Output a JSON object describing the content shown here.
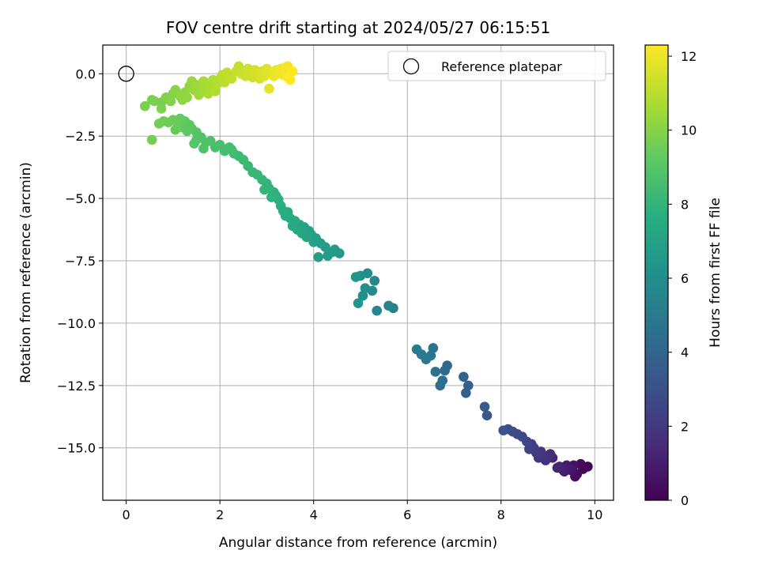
{
  "chart_data": {
    "type": "scatter",
    "title": "FOV centre drift starting at 2024/05/27 06:15:51",
    "xlabel": "Angular distance from reference (arcmin)",
    "ylabel": "Rotation from reference (arcmin)",
    "xlim": [
      -0.5,
      10.4
    ],
    "ylim": [
      -17.1,
      1.15
    ],
    "xticks": [
      0,
      2,
      4,
      6,
      8,
      10
    ],
    "xtick_labels": [
      "0",
      "2",
      "4",
      "6",
      "8",
      "10"
    ],
    "yticks": [
      0,
      -2.5,
      -5,
      -7.5,
      -10,
      -12.5,
      -15
    ],
    "ytick_labels": [
      "0.0",
      "−2.5",
      "−5.0",
      "−7.5",
      "−10.0",
      "−12.5",
      "−15.0"
    ],
    "grid": true,
    "legend": {
      "position": "top-right",
      "entries": [
        {
          "label": "Reference platepar",
          "marker": "open-circle"
        }
      ]
    },
    "reference_point": {
      "x": 0,
      "y": 0
    },
    "colorbar": {
      "label": "Hours from first FF file",
      "colormap": "viridis",
      "range": [
        0,
        12.3
      ],
      "ticks": [
        0,
        2,
        4,
        6,
        8,
        10,
        12
      ],
      "tick_labels": [
        "0",
        "2",
        "4",
        "6",
        "8",
        "10",
        "12"
      ]
    },
    "colormap_stops": [
      "#440154",
      "#472d7b",
      "#3b528b",
      "#2c728e",
      "#21918c",
      "#28ae80",
      "#5ec962",
      "#addc30",
      "#fde725"
    ],
    "points": [
      [
        9.85,
        -15.75,
        0.1
      ],
      [
        9.75,
        -15.85,
        0.2
      ],
      [
        9.7,
        -15.65,
        0.3
      ],
      [
        9.62,
        -16.05,
        0.4
      ],
      [
        9.58,
        -16.15,
        0.5
      ],
      [
        9.55,
        -15.7,
        0.6
      ],
      [
        9.5,
        -15.9,
        0.7
      ],
      [
        9.45,
        -15.8,
        0.8
      ],
      [
        9.4,
        -15.7,
        0.9
      ],
      [
        9.35,
        -15.95,
        1.0
      ],
      [
        9.3,
        -15.85,
        1.1
      ],
      [
        9.25,
        -15.75,
        1.2
      ],
      [
        9.2,
        -15.8,
        1.3
      ],
      [
        9.1,
        -15.4,
        1.4
      ],
      [
        9.05,
        -15.25,
        1.5
      ],
      [
        9.0,
        -15.35,
        1.6
      ],
      [
        8.95,
        -15.5,
        1.7
      ],
      [
        8.9,
        -15.3,
        1.8
      ],
      [
        8.85,
        -15.15,
        1.9
      ],
      [
        8.8,
        -15.4,
        2.0
      ],
      [
        8.75,
        -15.2,
        2.1
      ],
      [
        8.7,
        -15.0,
        2.2
      ],
      [
        8.65,
        -14.85,
        2.3
      ],
      [
        8.6,
        -15.05,
        2.4
      ],
      [
        8.55,
        -14.75,
        2.5
      ],
      [
        8.45,
        -14.55,
        2.6
      ],
      [
        8.35,
        -14.45,
        2.7
      ],
      [
        8.25,
        -14.35,
        2.8
      ],
      [
        8.15,
        -14.25,
        2.9
      ],
      [
        8.05,
        -14.3,
        3.0
      ],
      [
        7.7,
        -13.7,
        3.3
      ],
      [
        7.65,
        -13.35,
        3.4
      ],
      [
        7.3,
        -12.5,
        3.7
      ],
      [
        7.25,
        -12.8,
        3.8
      ],
      [
        7.2,
        -12.15,
        3.9
      ],
      [
        6.85,
        -11.7,
        4.2
      ],
      [
        6.8,
        -11.9,
        4.3
      ],
      [
        6.75,
        -12.3,
        4.4
      ],
      [
        6.7,
        -12.5,
        4.5
      ],
      [
        6.6,
        -11.95,
        4.6
      ],
      [
        6.55,
        -11.0,
        4.7
      ],
      [
        6.5,
        -11.3,
        4.8
      ],
      [
        6.4,
        -11.45,
        4.9
      ],
      [
        6.3,
        -11.25,
        5.0
      ],
      [
        6.2,
        -11.05,
        5.1
      ],
      [
        5.7,
        -9.4,
        5.4
      ],
      [
        5.6,
        -9.3,
        5.5
      ],
      [
        5.35,
        -9.5,
        5.6
      ],
      [
        5.3,
        -8.3,
        5.7
      ],
      [
        5.25,
        -8.7,
        5.8
      ],
      [
        5.15,
        -8.0,
        5.9
      ],
      [
        5.1,
        -8.6,
        6.0
      ],
      [
        5.05,
        -8.9,
        6.1
      ],
      [
        5.0,
        -8.1,
        6.2
      ],
      [
        4.95,
        -9.2,
        6.3
      ],
      [
        4.9,
        -8.15,
        6.4
      ],
      [
        4.55,
        -7.2,
        6.55
      ],
      [
        4.45,
        -7.05,
        6.65
      ],
      [
        4.4,
        -7.15,
        6.7
      ],
      [
        4.3,
        -7.3,
        6.75
      ],
      [
        4.25,
        -6.95,
        6.8
      ],
      [
        4.15,
        -6.8,
        6.85
      ],
      [
        4.1,
        -7.35,
        6.9
      ],
      [
        4.05,
        -6.6,
        6.95
      ],
      [
        4.0,
        -6.75,
        7.0
      ],
      [
        3.95,
        -6.45,
        7.05
      ],
      [
        3.9,
        -6.3,
        7.1
      ],
      [
        3.85,
        -6.55,
        7.15
      ],
      [
        3.8,
        -6.15,
        7.2
      ],
      [
        3.75,
        -6.4,
        7.25
      ],
      [
        3.7,
        -6.05,
        7.3
      ],
      [
        3.65,
        -6.25,
        7.35
      ],
      [
        3.6,
        -5.9,
        7.4
      ],
      [
        3.55,
        -6.1,
        7.45
      ],
      [
        3.5,
        -5.8,
        7.5
      ],
      [
        3.45,
        -5.55,
        7.55
      ],
      [
        3.4,
        -5.7,
        7.6
      ],
      [
        3.35,
        -5.5,
        7.65
      ],
      [
        3.3,
        -5.3,
        7.7
      ],
      [
        3.25,
        -5.05,
        7.75
      ],
      [
        3.2,
        -4.9,
        7.8
      ],
      [
        3.15,
        -4.75,
        7.85
      ],
      [
        3.1,
        -4.95,
        7.9
      ],
      [
        3.05,
        -4.6,
        7.95
      ],
      [
        3.0,
        -4.4,
        8.0
      ],
      [
        2.95,
        -4.65,
        8.05
      ],
      [
        2.9,
        -4.25,
        8.1
      ],
      [
        2.8,
        -4.05,
        8.15
      ],
      [
        2.7,
        -3.95,
        8.2
      ],
      [
        2.6,
        -3.7,
        8.25
      ],
      [
        2.5,
        -3.45,
        8.3
      ],
      [
        2.4,
        -3.3,
        8.35
      ],
      [
        2.3,
        -3.2,
        8.4
      ],
      [
        2.25,
        -3.05,
        8.45
      ],
      [
        2.2,
        -2.95,
        8.5
      ],
      [
        2.1,
        -3.1,
        8.55
      ],
      [
        2.0,
        -2.85,
        8.6
      ],
      [
        1.9,
        -2.95,
        8.65
      ],
      [
        1.8,
        -2.7,
        8.7
      ],
      [
        1.7,
        -2.75,
        8.75
      ],
      [
        1.65,
        -3.0,
        8.8
      ],
      [
        1.6,
        -2.55,
        8.85
      ],
      [
        1.5,
        -2.65,
        8.9
      ],
      [
        1.5,
        -2.35,
        8.95
      ],
      [
        1.45,
        -2.8,
        9.0
      ],
      [
        1.4,
        -2.2,
        9.05
      ],
      [
        1.35,
        -2.05,
        9.1
      ],
      [
        1.3,
        -2.3,
        9.15
      ],
      [
        1.25,
        -1.9,
        9.2
      ],
      [
        1.2,
        -2.15,
        9.25
      ],
      [
        1.15,
        -1.8,
        9.3
      ],
      [
        1.1,
        -2.0,
        9.35
      ],
      [
        1.05,
        -2.25,
        9.4
      ],
      [
        1.0,
        -1.85,
        9.45
      ],
      [
        0.9,
        -1.95,
        9.5
      ],
      [
        0.8,
        -1.9,
        9.55
      ],
      [
        0.7,
        -2.0,
        9.6
      ],
      [
        0.55,
        -2.65,
        9.65
      ],
      [
        0.6,
        -1.1,
        9.7
      ],
      [
        0.75,
        -1.15,
        9.75
      ],
      [
        0.4,
        -1.3,
        9.78
      ],
      [
        0.55,
        -1.05,
        9.8
      ],
      [
        0.75,
        -1.4,
        9.85
      ],
      [
        0.85,
        -0.95,
        9.9
      ],
      [
        0.95,
        -1.1,
        9.95
      ],
      [
        1.0,
        -0.8,
        10.0
      ],
      [
        1.05,
        -0.65,
        10.05
      ],
      [
        1.15,
        -0.9,
        10.1
      ],
      [
        1.2,
        -1.05,
        10.15
      ],
      [
        1.25,
        -0.75,
        10.2
      ],
      [
        1.3,
        -0.95,
        10.25
      ],
      [
        1.35,
        -0.5,
        10.3
      ],
      [
        1.4,
        -0.3,
        10.35
      ],
      [
        1.45,
        -0.65,
        10.4
      ],
      [
        1.5,
        -0.45,
        10.45
      ],
      [
        1.55,
        -0.85,
        10.5
      ],
      [
        1.6,
        -0.55,
        10.55
      ],
      [
        1.65,
        -0.3,
        10.6
      ],
      [
        1.7,
        -0.6,
        10.65
      ],
      [
        1.75,
        -0.8,
        10.7
      ],
      [
        1.8,
        -0.45,
        10.75
      ],
      [
        1.85,
        -0.25,
        10.8
      ],
      [
        1.9,
        -0.7,
        10.85
      ],
      [
        1.95,
        -0.4,
        10.9
      ],
      [
        2.0,
        -0.2,
        10.95
      ],
      [
        2.05,
        -0.05,
        11.0
      ],
      [
        2.1,
        -0.35,
        11.05
      ],
      [
        2.15,
        0.05,
        11.1
      ],
      [
        2.25,
        -0.2,
        11.15
      ],
      [
        2.35,
        0.1,
        11.2
      ],
      [
        2.4,
        0.3,
        11.25
      ],
      [
        2.45,
        0.0,
        11.3
      ],
      [
        2.55,
        -0.1,
        11.35
      ],
      [
        2.6,
        0.2,
        11.4
      ],
      [
        2.7,
        -0.15,
        11.45
      ],
      [
        2.75,
        0.15,
        11.5
      ],
      [
        2.8,
        0.05,
        11.55
      ],
      [
        2.85,
        -0.2,
        11.6
      ],
      [
        2.9,
        0.1,
        11.65
      ],
      [
        2.95,
        -0.1,
        11.7
      ],
      [
        3.0,
        0.2,
        11.75
      ],
      [
        3.05,
        -0.6,
        11.8
      ],
      [
        3.1,
        0.05,
        11.85
      ],
      [
        3.15,
        -0.1,
        11.9
      ],
      [
        3.2,
        0.15,
        11.95
      ],
      [
        3.25,
        0.0,
        12.0
      ],
      [
        3.3,
        0.2,
        12.05
      ],
      [
        3.35,
        -0.05,
        12.1
      ],
      [
        3.4,
        0.25,
        12.15
      ],
      [
        3.45,
        0.3,
        12.2
      ],
      [
        3.5,
        -0.25,
        12.25
      ],
      [
        3.55,
        0.1,
        12.28
      ],
      [
        3.45,
        -0.15,
        12.3
      ]
    ]
  }
}
